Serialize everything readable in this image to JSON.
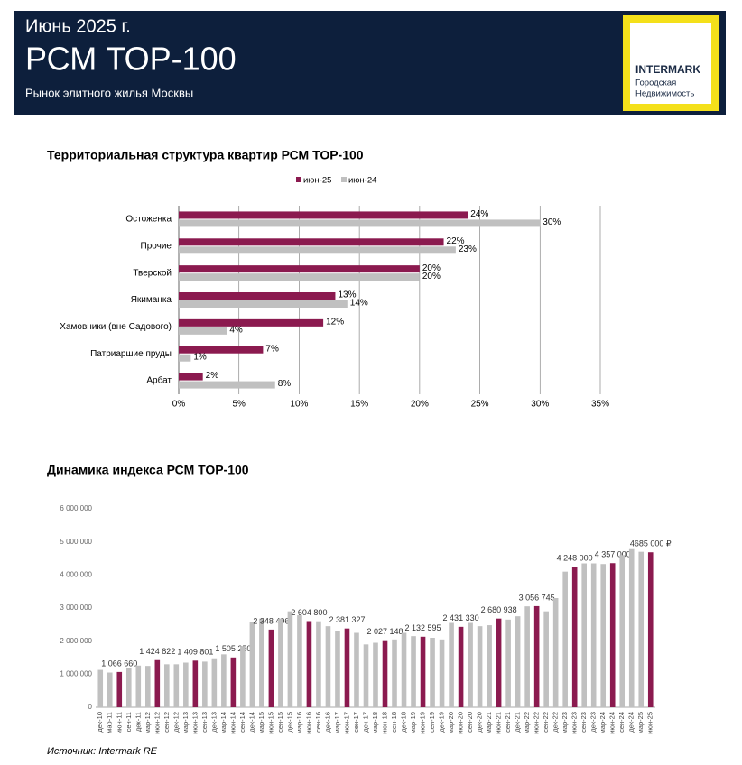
{
  "header": {
    "date": "Июнь 2025 г.",
    "title": "РСМ ТОР-100",
    "subtitle": "Рынок элитного жилья Москвы"
  },
  "logo": {
    "name": "INTERMARK",
    "tagline_1": "Городская",
    "tagline_2": "Недвижимость"
  },
  "chart_data": [
    {
      "type": "bar",
      "orientation": "horizontal",
      "title": "Территориальная структура квартир РСМ ТОР-100",
      "categories": [
        "Остоженка",
        "Прочие",
        "Тверской",
        "Якиманка",
        "Хамовники (вне Садового)",
        "Патриаршие пруды",
        "Арбат"
      ],
      "series": [
        {
          "name": "июн-25",
          "color": "#8b1a4f",
          "values": [
            24,
            22,
            20,
            13,
            12,
            7,
            2
          ],
          "value_labels": [
            "24%",
            "22%",
            "20%",
            "13%",
            "12%",
            "7%",
            "2%"
          ]
        },
        {
          "name": "июн-24",
          "color": "#c0c0c0",
          "values": [
            30,
            23,
            20,
            14,
            4,
            1,
            8
          ],
          "value_labels": [
            "30%",
            "23%",
            "20%",
            "14%",
            "4%",
            "1%",
            "8%"
          ]
        }
      ],
      "xlim": [
        0,
        35
      ],
      "xticks": [
        {
          "value": 0,
          "label": "0%"
        },
        {
          "value": 5,
          "label": "5%"
        },
        {
          "value": 10,
          "label": "10%"
        },
        {
          "value": 15,
          "label": "15%"
        },
        {
          "value": 20,
          "label": "20%"
        },
        {
          "value": 25,
          "label": "25%"
        },
        {
          "value": 30,
          "label": "30%"
        },
        {
          "value": 35,
          "label": "35%"
        }
      ],
      "grid": true,
      "legend": "top"
    },
    {
      "type": "bar",
      "orientation": "vertical",
      "title": "Динамика индекса РСМ ТОР-100",
      "categories": [
        "дек-10",
        "мар-11",
        "июн-11",
        "сен-11",
        "дек-11",
        "мар-12",
        "июн-12",
        "сен-12",
        "дек-12",
        "мар-13",
        "июн-13",
        "сен-13",
        "дек-13",
        "мар-14",
        "июн-14",
        "сен-14",
        "дек-14",
        "мар-15",
        "июн-15",
        "сен-15",
        "дек-15",
        "мар-16",
        "июн-16",
        "сен-16",
        "дек-16",
        "мар-17",
        "июн-17",
        "сен-17",
        "дек-17",
        "мар-18",
        "июн-18",
        "сен-18",
        "дек-18",
        "мар-19",
        "июн-19",
        "сен-19",
        "дек-19",
        "мар-20",
        "июн-20",
        "сен-20",
        "дек-20",
        "мар-21",
        "июн-21",
        "сен-21",
        "дек-21",
        "мар-22",
        "июн-22",
        "сен-22",
        "дек-22",
        "мар-23",
        "июн-23",
        "сен-23",
        "дек-23",
        "мар-24",
        "июн-24",
        "сен-24",
        "дек-24",
        "мар-25",
        "июн-25"
      ],
      "values": [
        1130000,
        1050000,
        1066660,
        1200000,
        1260000,
        1250000,
        1424822,
        1300000,
        1300000,
        1350000,
        1409801,
        1380000,
        1480000,
        1600000,
        1505250,
        1850000,
        2570000,
        2680000,
        2348496,
        2680000,
        2900000,
        2780000,
        2604800,
        2600000,
        2450000,
        2300000,
        2381327,
        2250000,
        1900000,
        1950000,
        2027148,
        2050000,
        2250000,
        2150000,
        2132595,
        2100000,
        2050000,
        2550000,
        2431330,
        2550000,
        2450000,
        2480000,
        2680938,
        2650000,
        2750000,
        3050000,
        3056745,
        2900000,
        3300000,
        4100000,
        4248000,
        4350000,
        4350000,
        4330000,
        4357000,
        4600000,
        4780000,
        4700000,
        4685000
      ],
      "value_labels": [
        null,
        null,
        "1 066 660",
        null,
        null,
        null,
        "1 424 822",
        null,
        null,
        null,
        "1 409 801",
        null,
        null,
        null,
        "1 505 250",
        null,
        null,
        null,
        "2 348 496",
        null,
        null,
        null,
        "2 604 800",
        null,
        null,
        null,
        "2 381 327",
        null,
        null,
        null,
        "2 027 148",
        null,
        null,
        null,
        "2 132 595",
        null,
        null,
        null,
        "2 431 330",
        null,
        null,
        null,
        "2 680 938",
        null,
        null,
        null,
        "3 056 745",
        null,
        null,
        null,
        "4 248 000",
        null,
        null,
        null,
        "4 357 000",
        null,
        null,
        null,
        "4685 000 ₽"
      ],
      "color": "#c0c0c0",
      "highlight_color": "#8b1a4f",
      "ylim": [
        0,
        6000000
      ],
      "yticks": [
        0,
        {
          "value": 1000000,
          "label": "1 000 000"
        },
        {
          "value": 2000000,
          "label": "2 000 000"
        },
        {
          "value": 3000000,
          "label": "3 000 000"
        },
        {
          "value": 4000000,
          "label": "4 000 000"
        },
        {
          "value": 5000000,
          "label": "5 000 000"
        },
        {
          "value": 6000000,
          "label": "6 000 000"
        }
      ],
      "grid": false
    }
  ],
  "source": "Источник: Intermark RE"
}
